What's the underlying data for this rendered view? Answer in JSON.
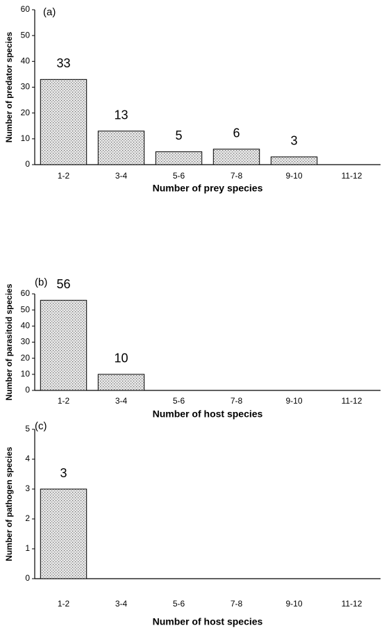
{
  "chart_data": [
    {
      "type": "bar",
      "panel_label": "(a)",
      "xlabel": "Number of prey species",
      "ylabel": "Number of predator species",
      "categories": [
        "1-2",
        "3-4",
        "5-6",
        "7-8",
        "9-10",
        "11-12"
      ],
      "values": [
        33,
        13,
        5,
        6,
        3,
        null
      ],
      "ylim": [
        0,
        60
      ],
      "yticks": [
        0,
        10,
        20,
        30,
        40,
        50,
        60
      ]
    },
    {
      "type": "bar",
      "panel_label": "(b)",
      "xlabel": "Number of host species",
      "ylabel": "Number of parasitoid species",
      "categories": [
        "1-2",
        "3-4",
        "5-6",
        "7-8",
        "9-10",
        "11-12"
      ],
      "values": [
        56,
        10,
        null,
        null,
        null,
        null
      ],
      "ylim": [
        0,
        60
      ],
      "yticks": [
        0,
        10,
        20,
        30,
        40,
        50,
        60
      ]
    },
    {
      "type": "bar",
      "panel_label": "(c)",
      "xlabel": "Number of host species",
      "ylabel": "Number of pathogen species",
      "categories": [
        "1-2",
        "3-4",
        "5-6",
        "7-8",
        "9-10",
        "11-12"
      ],
      "values": [
        3,
        null,
        null,
        null,
        null,
        null
      ],
      "ylim": [
        0,
        5
      ],
      "yticks": [
        0,
        1,
        2,
        3,
        4,
        5
      ]
    }
  ]
}
